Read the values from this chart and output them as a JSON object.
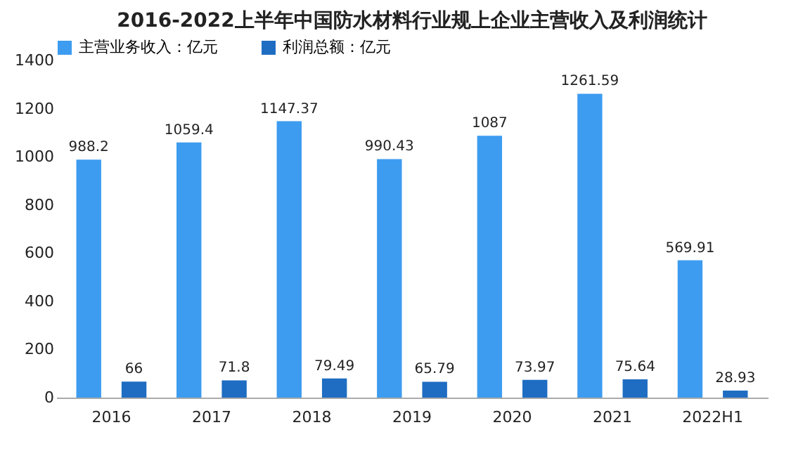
{
  "chart_data": {
    "type": "bar",
    "title": "2016-2022上半年中国防水材料行业规上企业主营收入及利润统计",
    "categories": [
      "2016",
      "2017",
      "2018",
      "2019",
      "2020",
      "2021",
      "2022H1"
    ],
    "series": [
      {
        "name": "主营业务收入：亿元",
        "color": "#3d9cf0",
        "values": [
          988.2,
          1059.4,
          1147.37,
          990.43,
          1087,
          1261.59,
          569.91
        ]
      },
      {
        "name": "利润总额：亿元",
        "color": "#1f6dc2",
        "values": [
          66,
          71.8,
          79.49,
          65.79,
          73.97,
          75.64,
          28.93
        ]
      }
    ],
    "ylim": [
      0,
      1400
    ],
    "yticks": [
      0,
      200,
      400,
      600,
      800,
      1000,
      1200,
      1400
    ],
    "grid": false,
    "legend": "top left",
    "data_labels": true
  }
}
